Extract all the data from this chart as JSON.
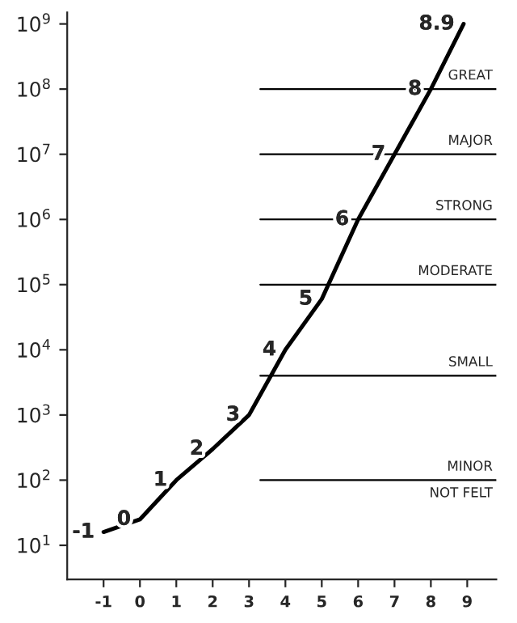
{
  "chart_data": {
    "type": "line",
    "log": "y",
    "x": [
      -1,
      0,
      1,
      2,
      3,
      4,
      5,
      6,
      7,
      8,
      8.9
    ],
    "series": [
      {
        "color": "#000000",
        "values": [
          16,
          25,
          100,
          300,
          1000,
          10000,
          60000,
          1000000,
          10000000,
          100000000,
          1000000000
        ]
      }
    ],
    "xlim": [
      -2,
      9.8
    ],
    "xticks": [
      -1,
      0,
      1,
      2,
      3,
      4,
      5,
      6,
      7,
      8,
      9
    ],
    "ylim": [
      3,
      1500000000
    ],
    "yticks": [
      {
        "value": 10,
        "label": "10$^{1}$"
      },
      {
        "value": 100,
        "label": "10$^{2}$"
      },
      {
        "value": 1000,
        "label": "10$^{3}$"
      },
      {
        "value": 10000,
        "label": "10$^{4}$"
      },
      {
        "value": 100000,
        "label": "10$^{5}$"
      },
      {
        "value": 1000000,
        "label": "10$^{6}$"
      },
      {
        "value": 10000000,
        "label": "10$^{7}$"
      },
      {
        "value": 100000000,
        "label": "10$^{8}$"
      },
      {
        "value": 1000000000,
        "label": "10$^{9}$"
      }
    ],
    "annotations": [
      {
        "text": "-1",
        "x": -1,
        "y": 16
      },
      {
        "text": "0",
        "x": 0,
        "y": 25
      },
      {
        "text": "1",
        "x": 1,
        "y": 100
      },
      {
        "text": "2",
        "x": 2,
        "y": 300
      },
      {
        "text": "3",
        "x": 3,
        "y": 1000
      },
      {
        "text": "4",
        "x": 4,
        "y": 10000
      },
      {
        "text": "5",
        "x": 5,
        "y": 60000
      },
      {
        "text": "6",
        "x": 6,
        "y": 1000000
      },
      {
        "text": "7",
        "x": 7,
        "y": 10000000
      },
      {
        "text": "8",
        "x": 8,
        "y": 100000000
      },
      {
        "text": "8.9",
        "x": 8.9,
        "y": 1000000000
      },
      "NOT FELT"
    ],
    "ref_lines": [
      {
        "axis": "y",
        "value": 100,
        "label": "MINOR",
        "color": "#000000"
      },
      {
        "axis": "y",
        "value": 4000,
        "label": "SMALL",
        "color": "#000000"
      },
      {
        "axis": "y",
        "value": 100000,
        "label": "MODERATE",
        "color": "#000000"
      },
      {
        "axis": "y",
        "value": 1000000,
        "label": "STRONG",
        "color": "#000000"
      },
      {
        "axis": "y",
        "value": 10000000,
        "label": "MAJOR",
        "color": "#000000"
      },
      {
        "axis": "y",
        "value": 100000000,
        "label": "GREAT",
        "color": "#000000"
      }
    ],
    "grid": false,
    "legend": false,
    "line_style": "solid"
  }
}
